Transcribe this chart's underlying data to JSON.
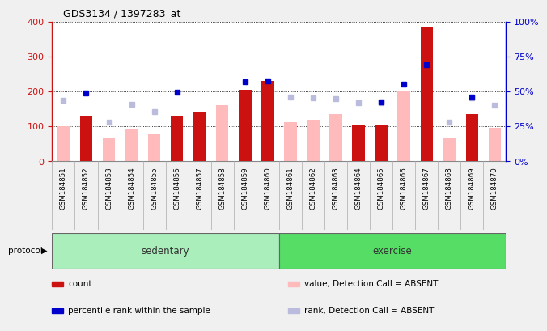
{
  "title": "GDS3134 / 1397283_at",
  "samples": [
    "GSM184851",
    "GSM184852",
    "GSM184853",
    "GSM184854",
    "GSM184855",
    "GSM184856",
    "GSM184857",
    "GSM184858",
    "GSM184859",
    "GSM184860",
    "GSM184861",
    "GSM184862",
    "GSM184863",
    "GSM184864",
    "GSM184865",
    "GSM184866",
    "GSM184867",
    "GSM184868",
    "GSM184869",
    "GSM184870"
  ],
  "count": [
    null,
    130,
    null,
    null,
    null,
    130,
    140,
    null,
    205,
    230,
    null,
    null,
    null,
    105,
    105,
    null,
    385,
    null,
    135,
    null
  ],
  "percentile_rank": [
    null,
    195,
    null,
    null,
    null,
    197,
    null,
    null,
    228,
    230,
    null,
    null,
    null,
    null,
    170,
    220,
    277,
    null,
    183,
    null
  ],
  "value_absent": [
    101,
    null,
    69,
    92,
    78,
    null,
    null,
    160,
    null,
    null,
    111,
    118,
    134,
    null,
    null,
    200,
    null,
    67,
    null,
    95
  ],
  "rank_absent": [
    174,
    null,
    112,
    163,
    143,
    null,
    null,
    null,
    null,
    null,
    184,
    182,
    178,
    168,
    168,
    null,
    null,
    111,
    181,
    161
  ],
  "sedentary_count": 10,
  "exercise_count": 10,
  "ylim_left": [
    0,
    400
  ],
  "ylim_right": [
    0,
    100
  ],
  "yticks_left": [
    0,
    100,
    200,
    300,
    400
  ],
  "yticks_right": [
    0,
    25,
    50,
    75,
    100
  ],
  "ytick_labels_right": [
    "0%",
    "25%",
    "50%",
    "75%",
    "100%"
  ],
  "color_count": "#cc1111",
  "color_rank": "#0000cc",
  "color_value_absent": "#ffbbbb",
  "color_rank_absent": "#bbbbdd",
  "bg_color": "#f0f0f0",
  "plot_bg": "#ffffff",
  "sedentary_color": "#aaeebb",
  "exercise_color": "#55dd66",
  "protocol_label": "protocol",
  "sedentary_label": "sedentary",
  "exercise_label": "exercise",
  "legend_items": [
    {
      "label": "count",
      "color": "#cc1111"
    },
    {
      "label": "percentile rank within the sample",
      "color": "#0000cc"
    },
    {
      "label": "value, Detection Call = ABSENT",
      "color": "#ffbbbb"
    },
    {
      "label": "rank, Detection Call = ABSENT",
      "color": "#bbbbdd"
    }
  ]
}
